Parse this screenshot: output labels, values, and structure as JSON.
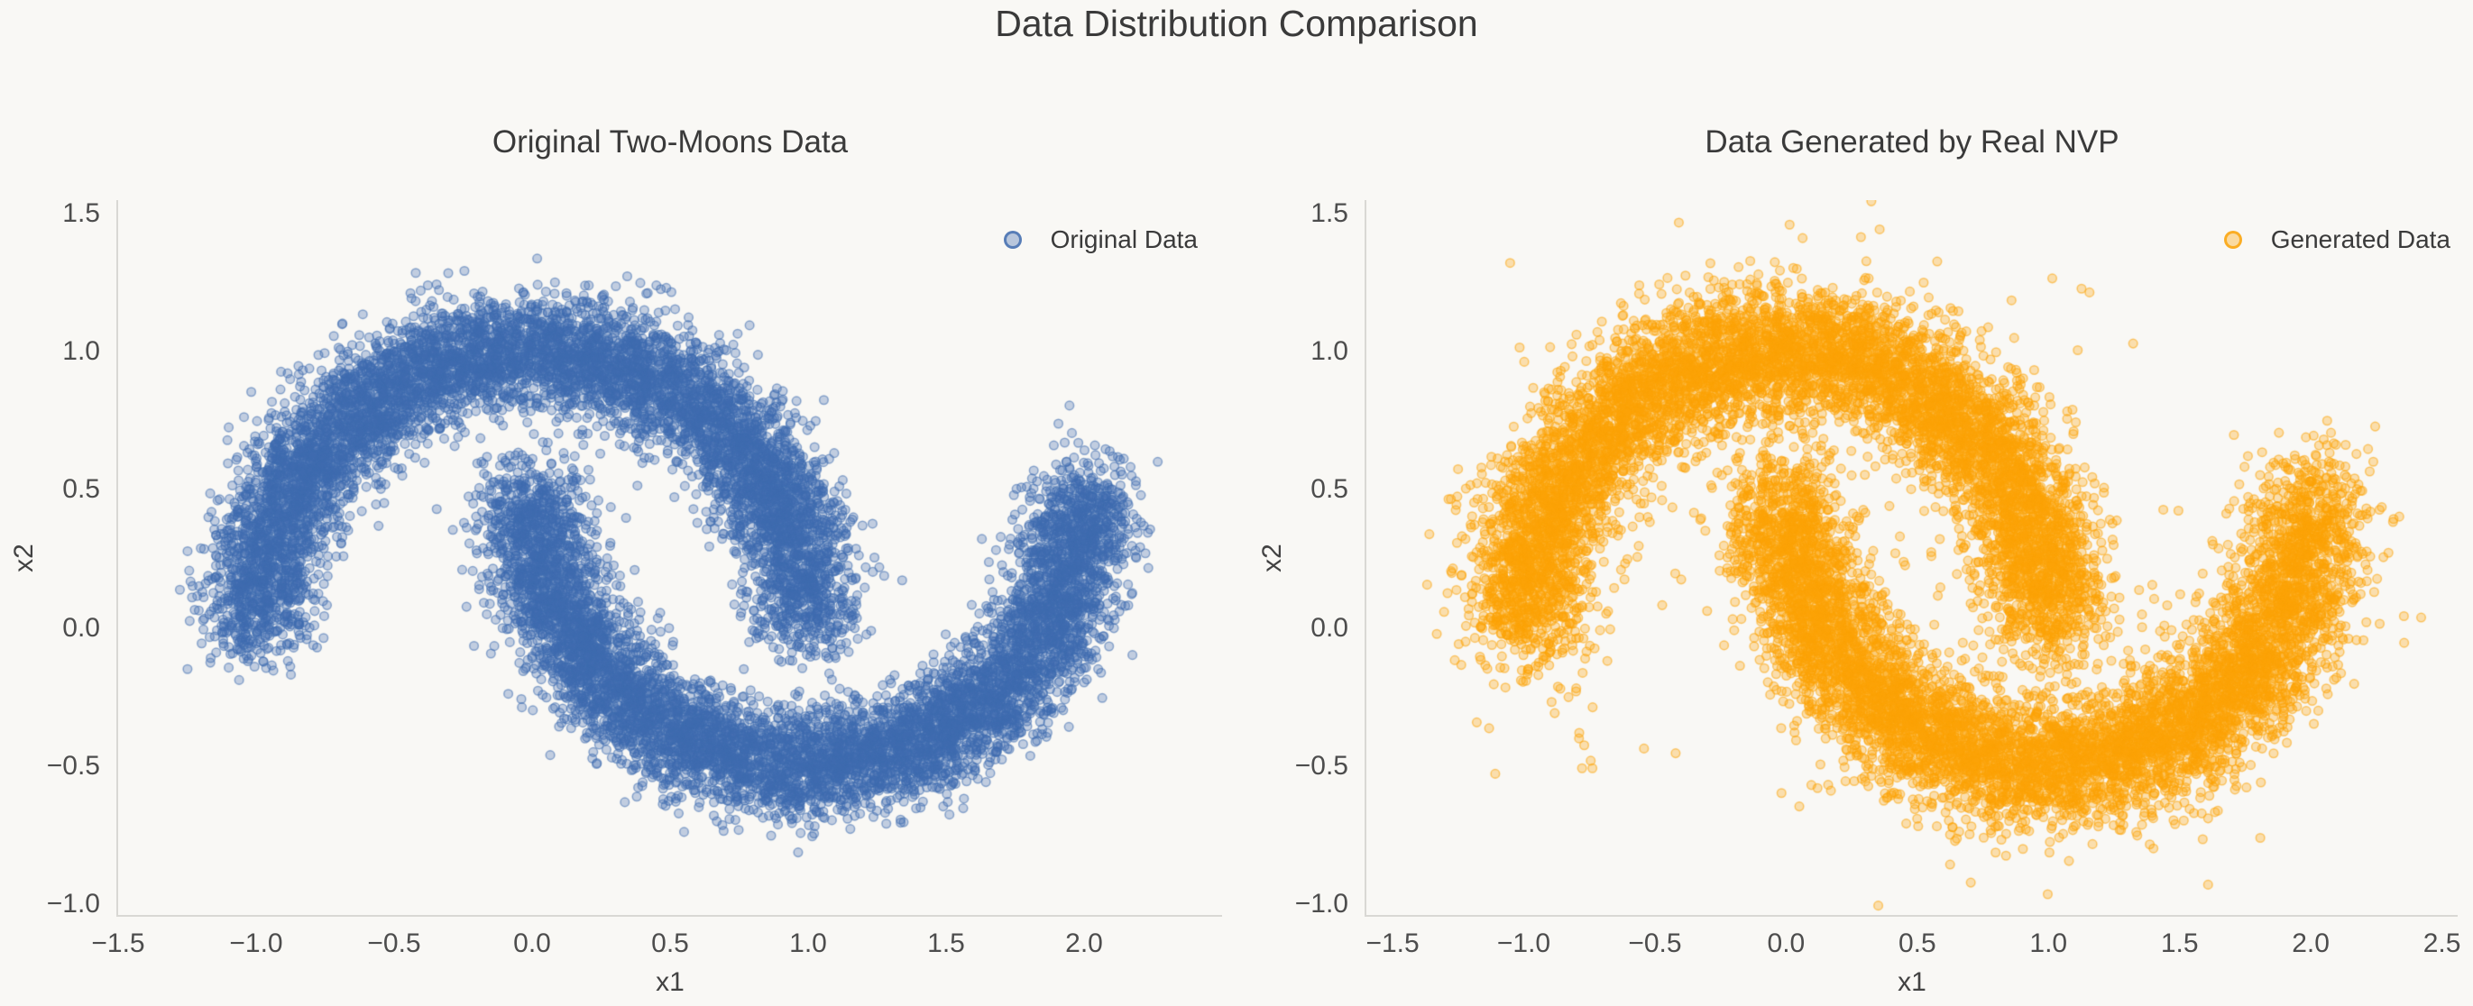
{
  "title": "Data Distribution Comparison",
  "style": {
    "background": "#f9f8f5",
    "title_color": "#3a3a3a",
    "tick_color": "#4d4d4d",
    "label_color": "#424242",
    "spine_color": "#d9d8d4"
  },
  "chart_data": [
    {
      "type": "scatter",
      "title": "Original Two-Moons Data",
      "xlabel": "x1",
      "ylabel": "x2",
      "legend": {
        "label": "Original Data",
        "position": "upper right",
        "frame": false
      },
      "color": "#3e6bae",
      "marker": {
        "radius": 4.8,
        "fill_alpha": 0.3,
        "edge_alpha": 0.55,
        "edge_width": 1.5
      },
      "xlim": [
        -1.5,
        2.5
      ],
      "ylim": [
        -1.04,
        1.55
      ],
      "xticks": [
        -1.5,
        -1.0,
        -0.5,
        0.0,
        0.5,
        1.0,
        1.5,
        2.0
      ],
      "yticks": [
        1.5,
        1.0,
        0.5,
        0.0,
        -0.5,
        -1.0
      ],
      "grid": false,
      "distribution": {
        "name": "two_moons",
        "n_samples": 15000,
        "noise": 0.1,
        "seed": 42,
        "outlier_fraction": 0,
        "outlier_noise": 0
      }
    },
    {
      "type": "scatter",
      "title": "Data Generated by Real NVP",
      "xlabel": "x1",
      "ylabel": "x2",
      "legend": {
        "label": "Generated Data",
        "position": "upper right",
        "frame": false
      },
      "color": "#fba305",
      "marker": {
        "radius": 4.8,
        "fill_alpha": 0.3,
        "edge_alpha": 0.55,
        "edge_width": 1.5
      },
      "xlim": [
        -1.6,
        2.56
      ],
      "ylim": [
        -1.04,
        1.55
      ],
      "xticks": [
        -1.5,
        -1.0,
        -0.5,
        0.0,
        0.5,
        1.0,
        1.5,
        2.0,
        2.5
      ],
      "yticks": [
        1.5,
        1.0,
        0.5,
        0.0,
        -0.5,
        -1.0
      ],
      "grid": false,
      "distribution": {
        "name": "two_moons",
        "n_samples": 15000,
        "noise": 0.115,
        "seed": 7,
        "outlier_fraction": 0.025,
        "outlier_noise": 0.27,
        "tail": {
          "n": 26,
          "from": [
            -0.88,
            0.12
          ],
          "to": [
            -0.7,
            -0.5
          ],
          "noise": 0.07
        }
      }
    }
  ]
}
